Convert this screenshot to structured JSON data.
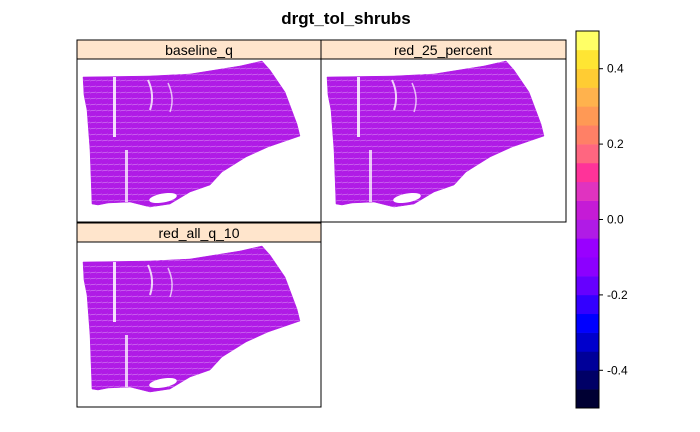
{
  "figure": {
    "title": "drgt_tol_shrubs",
    "region_color": "#B01BE6",
    "background": "#ffffff",
    "strip_color": "#FFE5CC"
  },
  "panels": [
    {
      "label": "baseline_q"
    },
    {
      "label": "red_25_percent"
    },
    {
      "label": "red_all_q_10"
    }
  ],
  "colorbar": {
    "range": [
      -0.5,
      0.5
    ],
    "ticks": [
      "0.4",
      "0.2",
      "0.0",
      "-0.2",
      "-0.4"
    ],
    "colors": [
      "#000033",
      "#000066",
      "#000099",
      "#0000CC",
      "#0000FF",
      "#3300FF",
      "#6600FF",
      "#8C00FF",
      "#9900FF",
      "#B01BE6",
      "#C51BD6",
      "#E033C0",
      "#FF3399",
      "#FF6680",
      "#FF8066",
      "#FF9955",
      "#FFB24D",
      "#FFCC33",
      "#FFE533",
      "#FFFF66"
    ]
  }
}
